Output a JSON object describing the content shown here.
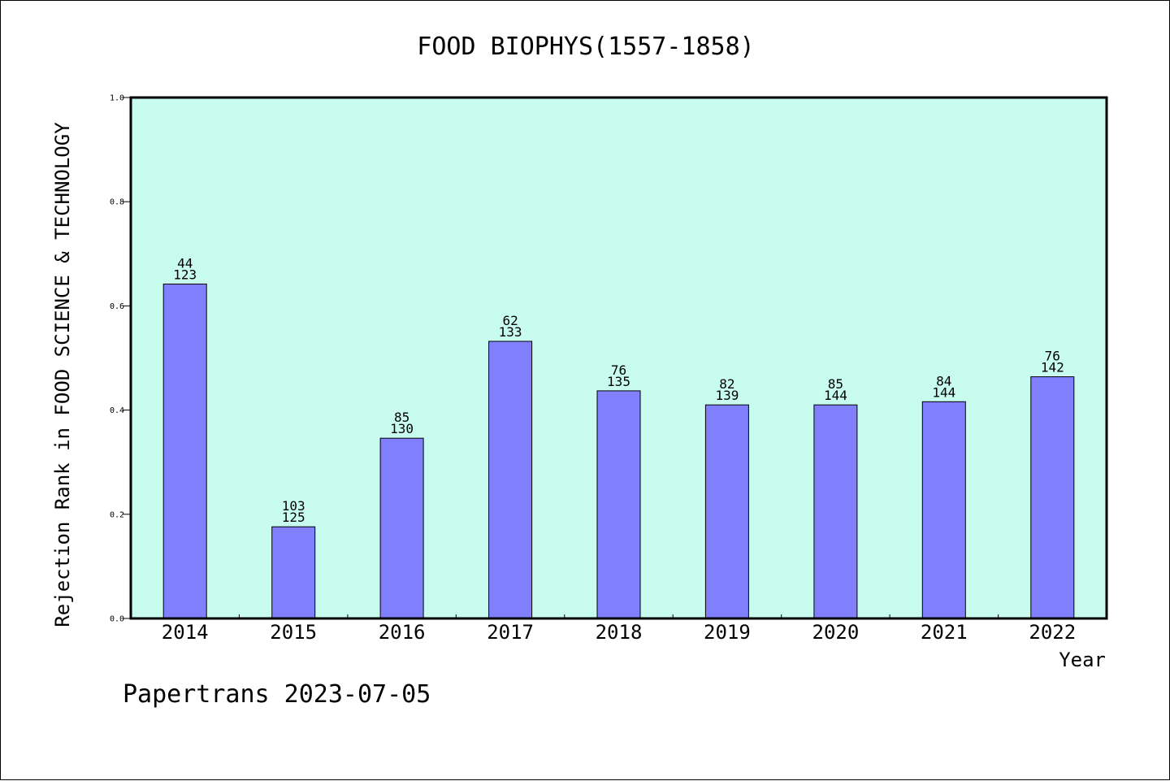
{
  "chart_data": {
    "type": "bar",
    "title": "FOOD BIOPHYS(1557-1858)",
    "xlabel": "Year",
    "ylabel": "Rejection Rank in FOOD SCIENCE & TECHNOLOGY",
    "ylim": [
      0.0,
      1.0
    ],
    "yticks": [
      "0.0",
      "0.2",
      "0.4",
      "0.6",
      "0.8",
      "1.0"
    ],
    "grid": false,
    "categories": [
      "2014",
      "2015",
      "2016",
      "2017",
      "2018",
      "2019",
      "2020",
      "2021",
      "2022"
    ],
    "values": [
      0.642,
      0.176,
      0.346,
      0.532,
      0.437,
      0.41,
      0.41,
      0.416,
      0.464
    ],
    "labels_top": [
      "44",
      "103",
      "85",
      "62",
      "76",
      "82",
      "85",
      "84",
      "76"
    ],
    "labels_bottom": [
      "123",
      "125",
      "130",
      "133",
      "135",
      "139",
      "144",
      "144",
      "142"
    ],
    "colors": {
      "plot_bg": "#c8fcee",
      "bar": "#8080ff",
      "bar_edge": "#000000"
    }
  },
  "footer": {
    "text": "Papertrans 2023-07-05"
  }
}
